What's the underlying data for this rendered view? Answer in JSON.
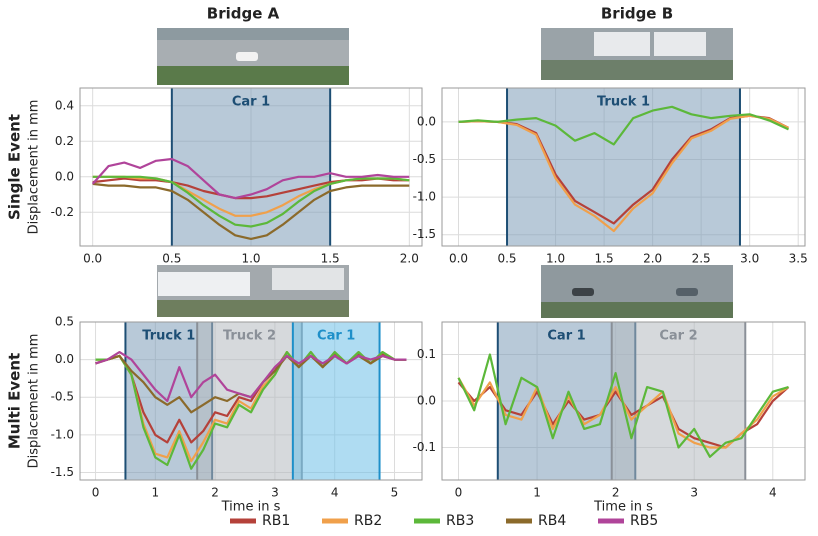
{
  "column_titles": [
    "Bridge A",
    "Bridge B"
  ],
  "row_titles": [
    "Single Event",
    "Multi Event"
  ],
  "chart_data": [
    {
      "type": "line",
      "ylabel": "Displacement in mm",
      "x": [
        0,
        0.1,
        0.2,
        0.3,
        0.4,
        0.5,
        0.6,
        0.7,
        0.8,
        0.9,
        1.0,
        1.1,
        1.2,
        1.3,
        1.4,
        1.5,
        1.6,
        1.7,
        1.8,
        1.9,
        2.0
      ],
      "xlim": [
        -0.08,
        2.08
      ],
      "ylim": [
        -0.39,
        0.5
      ],
      "xticks": [
        {
          "value": 0,
          "label": "0.0"
        },
        0.5,
        {
          "value": 1,
          "label": "1.0"
        },
        1.5,
        {
          "value": 2,
          "label": "2.0"
        }
      ],
      "yticks": [
        -0.2,
        {
          "value": 0,
          "label": "0.0"
        },
        0.2,
        0.4
      ],
      "grid": true,
      "regions": [
        {
          "label": "Car 1",
          "start": 0.5,
          "end": 1.5,
          "color": "#7d9cb8",
          "text_color": "#1d4e74"
        }
      ],
      "series": [
        {
          "name": "RB1",
          "color": "#b5413a",
          "values": [
            -0.03,
            -0.02,
            -0.01,
            -0.02,
            -0.02,
            -0.03,
            -0.05,
            -0.08,
            -0.1,
            -0.12,
            -0.12,
            -0.11,
            -0.09,
            -0.07,
            -0.05,
            -0.03,
            -0.02,
            -0.02,
            -0.01,
            -0.02,
            -0.02
          ]
        },
        {
          "name": "RB2",
          "color": "#f0a04b",
          "values": [
            0,
            0,
            0,
            -0.01,
            -0.01,
            -0.03,
            -0.08,
            -0.13,
            -0.18,
            -0.22,
            -0.22,
            -0.2,
            -0.16,
            -0.11,
            -0.07,
            -0.04,
            -0.02,
            -0.01,
            -0.01,
            -0.01,
            -0.02
          ]
        },
        {
          "name": "RB3",
          "color": "#5cb83a",
          "values": [
            0,
            0,
            0,
            0,
            -0.01,
            -0.03,
            -0.09,
            -0.16,
            -0.22,
            -0.27,
            -0.28,
            -0.26,
            -0.21,
            -0.14,
            -0.08,
            -0.04,
            -0.02,
            -0.01,
            -0.01,
            -0.01,
            -0.02
          ]
        },
        {
          "name": "RB4",
          "color": "#8b6a2b",
          "values": [
            -0.04,
            -0.05,
            -0.05,
            -0.06,
            -0.06,
            -0.08,
            -0.13,
            -0.2,
            -0.27,
            -0.33,
            -0.35,
            -0.33,
            -0.27,
            -0.2,
            -0.13,
            -0.08,
            -0.06,
            -0.05,
            -0.05,
            -0.05,
            -0.05
          ]
        },
        {
          "name": "RB5",
          "color": "#b0449a",
          "values": [
            -0.04,
            0.06,
            0.08,
            0.05,
            0.09,
            0.1,
            0.06,
            -0.02,
            -0.1,
            -0.12,
            -0.1,
            -0.07,
            -0.02,
            0.0,
            0.0,
            0.02,
            0.0,
            0.0,
            0.01,
            0.0,
            0.0
          ]
        }
      ]
    },
    {
      "type": "line",
      "x": [
        0,
        0.2,
        0.4,
        0.6,
        0.8,
        1.0,
        1.2,
        1.4,
        1.6,
        1.8,
        2.0,
        2.2,
        2.4,
        2.6,
        2.8,
        3.0,
        3.2,
        3.4
      ],
      "xlim": [
        -0.17,
        3.57
      ],
      "ylim": [
        -1.65,
        0.45
      ],
      "xticks": [
        {
          "value": 0,
          "label": "0.0"
        },
        0.5,
        {
          "value": 1,
          "label": "1.0"
        },
        1.5,
        {
          "value": 2,
          "label": "2.0"
        },
        2.5,
        {
          "value": 3,
          "label": "3.0"
        },
        3.5
      ],
      "yticks": [
        -1.5,
        {
          "value": -1,
          "label": "-1.0"
        },
        -0.5,
        {
          "value": 0,
          "label": "0.0"
        }
      ],
      "grid": true,
      "regions": [
        {
          "label": "Truck 1",
          "start": 0.5,
          "end": 2.9,
          "color": "#7d9cb8",
          "text_color": "#1d4e74"
        }
      ],
      "series": [
        {
          "name": "RB1",
          "color": "#b5413a",
          "values": [
            0,
            0.01,
            0,
            -0.03,
            -0.15,
            -0.7,
            -1.05,
            -1.2,
            -1.35,
            -1.1,
            -0.9,
            -0.5,
            -0.2,
            -0.1,
            0.05,
            0.08,
            0.05,
            -0.08
          ]
        },
        {
          "name": "RB2",
          "color": "#f0a04b",
          "values": [
            0,
            0.01,
            0,
            -0.04,
            -0.17,
            -0.75,
            -1.1,
            -1.25,
            -1.45,
            -1.15,
            -0.95,
            -0.55,
            -0.22,
            -0.12,
            0.04,
            0.08,
            0.04,
            -0.08
          ]
        },
        {
          "name": "RB3",
          "color": "#5cb83a",
          "values": [
            0,
            0.02,
            0,
            0.03,
            0.05,
            -0.05,
            -0.25,
            -0.15,
            -0.3,
            0.05,
            0.15,
            0.2,
            0.1,
            0.05,
            0.08,
            0.1,
            0.02,
            -0.1
          ]
        }
      ]
    },
    {
      "type": "line",
      "ylabel": "Displacement in mm",
      "xlabel": "Time in s",
      "x": [
        0,
        0.2,
        0.4,
        0.6,
        0.8,
        1.0,
        1.2,
        1.4,
        1.6,
        1.8,
        2.0,
        2.2,
        2.4,
        2.6,
        2.8,
        3.0,
        3.2,
        3.4,
        3.6,
        3.8,
        4.0,
        4.2,
        4.4,
        4.6,
        4.8,
        5.0,
        5.2
      ],
      "xlim": [
        -0.26,
        5.46
      ],
      "ylim": [
        -1.6,
        0.5
      ],
      "xticks": [
        0,
        1,
        2,
        3,
        4,
        5
      ],
      "yticks": [
        -1.5,
        {
          "value": -1,
          "label": "-1.0"
        },
        -0.5,
        {
          "value": 0,
          "label": "0.0"
        },
        0.5
      ],
      "grid": true,
      "regions": [
        {
          "label": "Truck 1",
          "start": 0.5,
          "end": 1.95,
          "color": "#7d9cb8",
          "text_color": "#1d4e74"
        },
        {
          "label": "Truck 2",
          "start": 1.7,
          "end": 3.45,
          "color": "#b4b9bf",
          "text_color": "#8a9098"
        },
        {
          "label": "Car 1",
          "start": 3.3,
          "end": 4.75,
          "color": "#6ec0e8",
          "text_color": "#1e8fc9"
        }
      ],
      "series": [
        {
          "name": "RB1",
          "color": "#b5413a",
          "values": [
            -0.05,
            0,
            0.05,
            -0.2,
            -0.7,
            -1.0,
            -1.1,
            -0.8,
            -1.1,
            -0.95,
            -0.7,
            -0.75,
            -0.5,
            -0.55,
            -0.3,
            -0.15,
            0.1,
            -0.1,
            0.1,
            -0.1,
            0.08,
            -0.05,
            0.08,
            -0.05,
            0.08,
            0,
            0
          ]
        },
        {
          "name": "RB2",
          "color": "#f0a04b",
          "values": [
            0,
            0,
            0.05,
            -0.2,
            -0.85,
            -1.25,
            -1.3,
            -0.95,
            -1.35,
            -1.1,
            -0.8,
            -0.85,
            -0.55,
            -0.65,
            -0.35,
            -0.2,
            0.1,
            -0.1,
            0.1,
            -0.1,
            0.1,
            -0.05,
            0.1,
            -0.05,
            0.1,
            0,
            0
          ]
        },
        {
          "name": "RB3",
          "color": "#5cb83a",
          "values": [
            0,
            0,
            0.05,
            -0.2,
            -0.9,
            -1.3,
            -1.4,
            -1.0,
            -1.45,
            -1.2,
            -0.85,
            -0.9,
            -0.6,
            -0.7,
            -0.4,
            -0.2,
            0.1,
            -0.1,
            0.1,
            -0.1,
            0.1,
            -0.05,
            0.1,
            -0.05,
            0.1,
            0,
            0
          ]
        },
        {
          "name": "RB4",
          "color": "#8b6a2b",
          "values": [
            -0.05,
            0,
            0.05,
            -0.15,
            -0.3,
            -0.5,
            -0.6,
            -0.5,
            -0.7,
            -0.6,
            -0.5,
            -0.55,
            -0.45,
            -0.5,
            -0.3,
            -0.15,
            0.05,
            -0.1,
            0.05,
            -0.1,
            0.05,
            -0.05,
            0.05,
            -0.05,
            0.05,
            0,
            0
          ]
        },
        {
          "name": "RB5",
          "color": "#b0449a",
          "values": [
            -0.05,
            0,
            0.1,
            0,
            -0.2,
            -0.4,
            -0.55,
            -0.1,
            -0.5,
            -0.3,
            -0.2,
            -0.4,
            -0.45,
            -0.5,
            -0.3,
            -0.1,
            0.05,
            -0.05,
            0.05,
            -0.05,
            0.05,
            -0.05,
            0.05,
            0,
            0.05,
            0,
            0
          ]
        }
      ]
    },
    {
      "type": "line",
      "xlabel": "Time in s",
      "x": [
        0,
        0.2,
        0.4,
        0.6,
        0.8,
        1.0,
        1.2,
        1.4,
        1.6,
        1.8,
        2.0,
        2.2,
        2.4,
        2.6,
        2.8,
        3.0,
        3.2,
        3.4,
        3.6,
        3.8,
        4.0,
        4.2
      ],
      "xlim": [
        -0.21,
        4.41
      ],
      "ylim": [
        -0.17,
        0.17
      ],
      "xticks": [
        0,
        1,
        2,
        3,
        4
      ],
      "yticks": [
        -0.1,
        {
          "value": 0,
          "label": "0.0"
        },
        0.1
      ],
      "grid": true,
      "regions": [
        {
          "label": "Car 1",
          "start": 0.5,
          "end": 2.25,
          "color": "#7d9cb8",
          "text_color": "#1d4e74"
        },
        {
          "label": "Car 2",
          "start": 1.95,
          "end": 3.65,
          "color": "#b4b9bf",
          "text_color": "#8a9098"
        }
      ],
      "series": [
        {
          "name": "RB1",
          "color": "#b5413a",
          "values": [
            0.04,
            0,
            0.03,
            -0.02,
            -0.03,
            0.02,
            -0.05,
            0,
            -0.04,
            -0.03,
            0.02,
            -0.03,
            -0.01,
            0.01,
            -0.06,
            -0.08,
            -0.09,
            -0.1,
            -0.07,
            -0.05,
            0,
            0.03
          ]
        },
        {
          "name": "RB2",
          "color": "#f0a04b",
          "values": [
            0.05,
            -0.01,
            0.04,
            -0.03,
            -0.04,
            0.03,
            -0.06,
            0.01,
            -0.05,
            -0.03,
            0.03,
            -0.04,
            -0.01,
            0.02,
            -0.07,
            -0.09,
            -0.1,
            -0.1,
            -0.07,
            -0.04,
            0.01,
            0.03
          ]
        },
        {
          "name": "RB3",
          "color": "#5cb83a",
          "values": [
            0.05,
            -0.02,
            0.1,
            -0.05,
            0.05,
            0.03,
            -0.08,
            0.02,
            -0.06,
            -0.05,
            0.06,
            -0.08,
            0.03,
            0.02,
            -0.1,
            -0.06,
            -0.12,
            -0.09,
            -0.08,
            -0.03,
            0.02,
            0.03
          ]
        }
      ]
    }
  ]
}
